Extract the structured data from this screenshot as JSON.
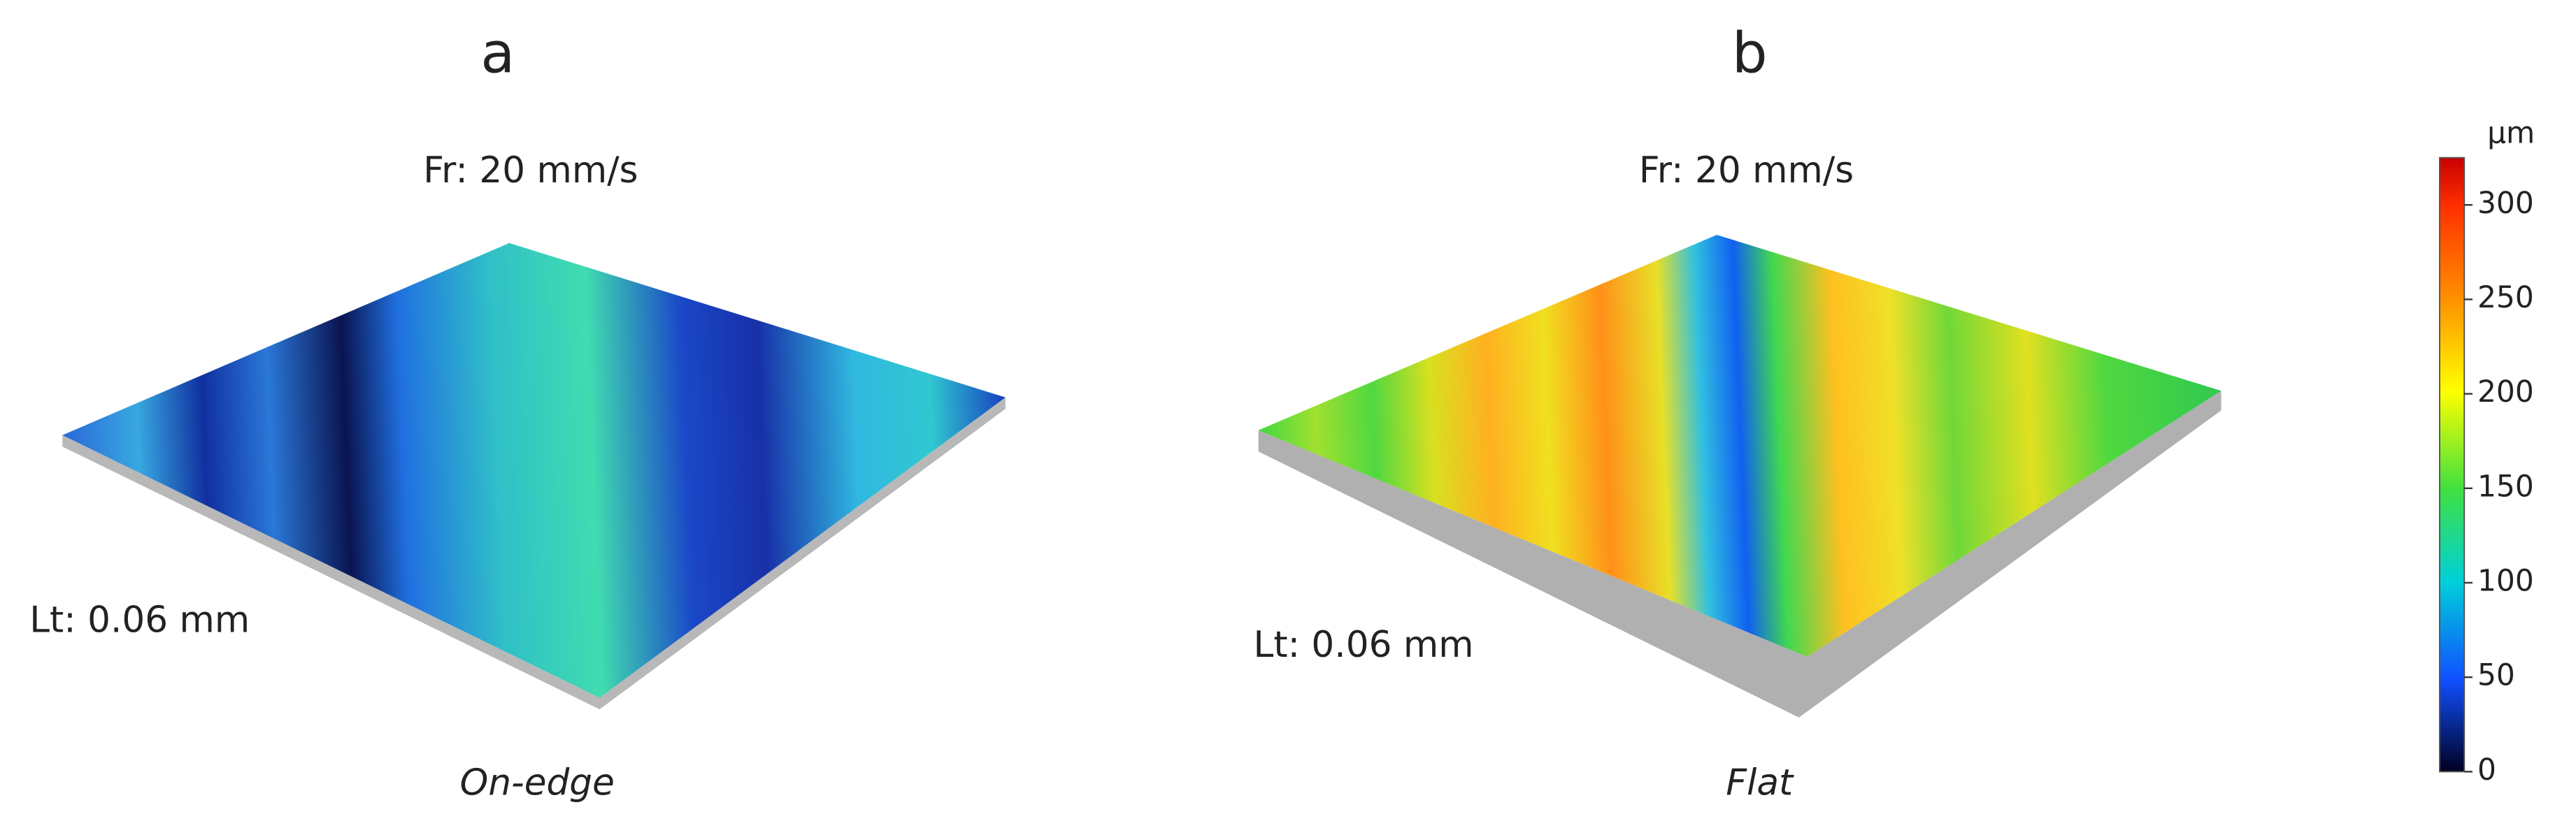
{
  "panels": [
    {
      "label": "a",
      "feed_rate": "Fr: 20 mm/s",
      "layer_thickness": "Lt: 0.06 mm",
      "orientation": "On-edge"
    },
    {
      "label": "b",
      "feed_rate": "Fr: 20 mm/s",
      "layer_thickness": "Lt: 0.06 mm",
      "orientation": "Flat"
    }
  ],
  "colorbar": {
    "unit": "µm",
    "limits": [
      0,
      325
    ],
    "ticks": [
      0,
      50,
      100,
      150,
      200,
      250,
      300
    ]
  }
}
